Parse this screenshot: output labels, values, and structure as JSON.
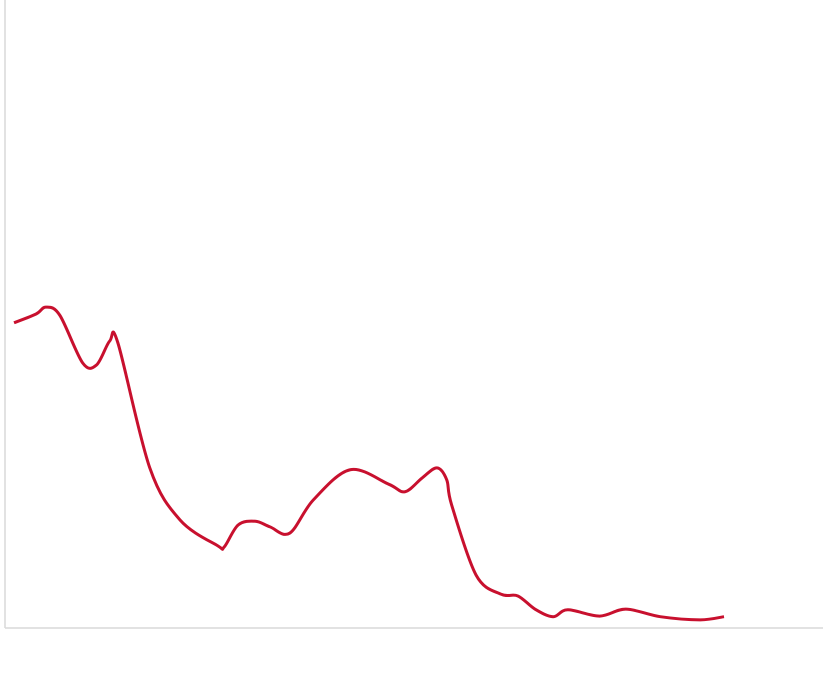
{
  "chart_data": {
    "type": "line",
    "title": "",
    "xlabel": "",
    "ylabel": "",
    "xlim": [
      0,
      100
    ],
    "ylim": [
      0,
      100
    ],
    "grid": false,
    "line_color": "#c8102e",
    "axis_color": "#d9d9d9",
    "series": [
      {
        "x": [
          1.1,
          3.8,
          5.0,
          6.7,
          9.5,
          11.2,
          12.8,
          13.8,
          17.7,
          21.4,
          26.0,
          26.8,
          28.5,
          30.6,
          32.4,
          34.8,
          37.7,
          42.2,
          46.9,
          48.9,
          51.0,
          52.8,
          54.0,
          54.6,
          57.6,
          60.6,
          62.7,
          64.8,
          67.0,
          68.8,
          72.7,
          75.9,
          80.1,
          85.0,
          87.9
        ],
        "y": [
          48.6,
          50.0,
          51.1,
          49.8,
          42.2,
          41.9,
          45.7,
          45.4,
          25.5,
          17.2,
          13.1,
          12.9,
          16.4,
          17.0,
          16.1,
          15.1,
          20.4,
          25.2,
          22.9,
          21.7,
          23.9,
          25.5,
          23.6,
          19.6,
          8.4,
          5.4,
          5.1,
          3.0,
          1.8,
          2.9,
          1.9,
          3.0,
          1.8,
          1.3,
          1.8
        ]
      }
    ]
  }
}
